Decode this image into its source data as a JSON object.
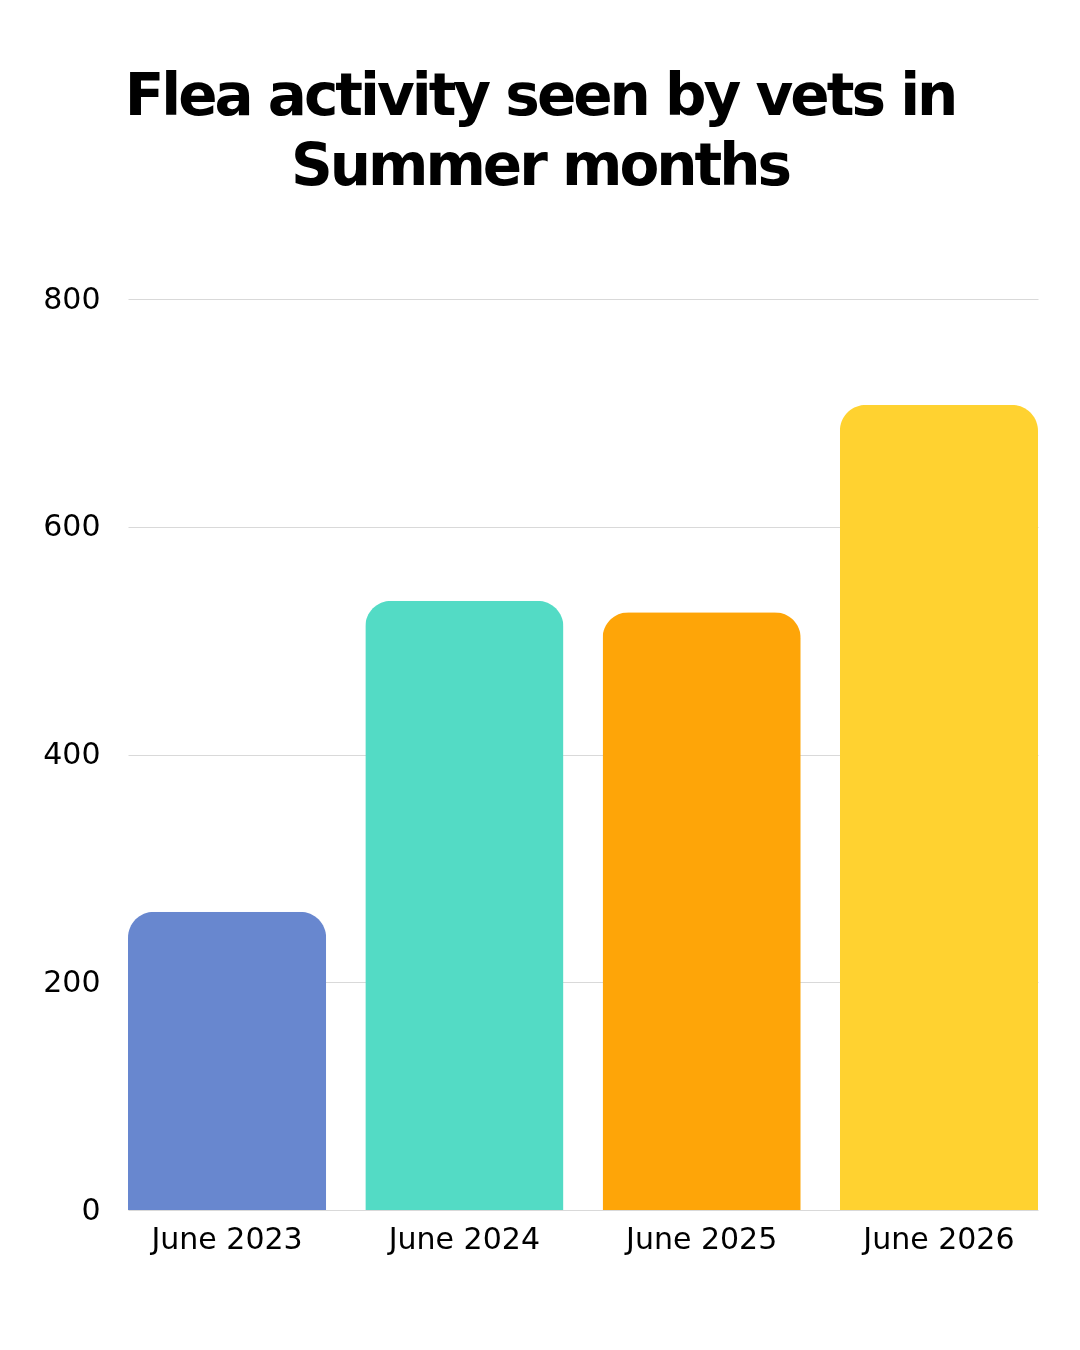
{
  "chart_data": {
    "type": "bar",
    "title": "Flea activity seen by vets in Summer months",
    "categories": [
      "June 2023",
      "June 2024",
      "June 2025",
      "June 2026"
    ],
    "values": [
      262,
      535,
      525,
      707
    ],
    "colors": [
      "#6887cf",
      "#53dbc5",
      "#fea508",
      "#ffd230"
    ],
    "ylim": [
      0,
      800
    ],
    "yticks": [
      0,
      200,
      400,
      600,
      800
    ],
    "grid": "y"
  }
}
